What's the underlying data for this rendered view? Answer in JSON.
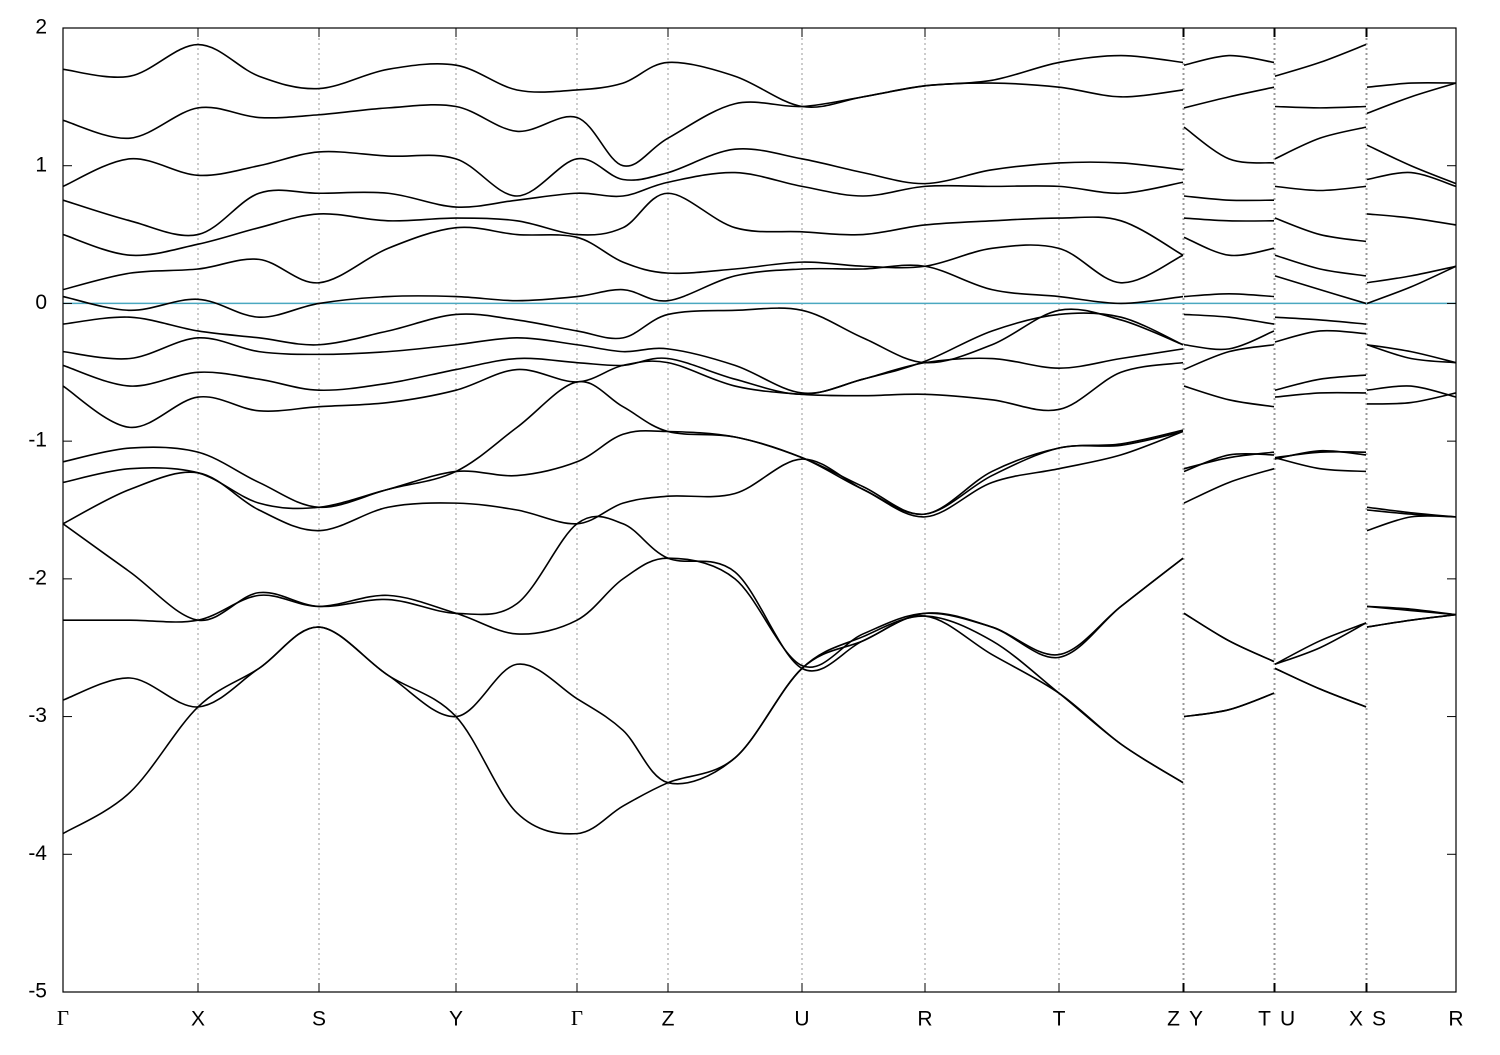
{
  "chart_data": {
    "type": "line",
    "xlim": [
      0,
      1393
    ],
    "ylim": [
      -5,
      2
    ],
    "yticks": [
      -5,
      -4,
      -3,
      -2,
      -1,
      0,
      1,
      2
    ],
    "xticks": [
      {
        "value": 0,
        "label": "Γ"
      },
      {
        "value": 135,
        "label": "X"
      },
      {
        "value": 256,
        "label": "S"
      },
      {
        "value": 393,
        "label": "Y"
      },
      {
        "value": 514,
        "label": "Γ"
      },
      {
        "value": 605,
        "label": "Z"
      },
      {
        "value": 739,
        "label": "U"
      },
      {
        "value": 862,
        "label": "R"
      },
      {
        "value": 996,
        "label": "T"
      },
      {
        "value": 1120,
        "label": "Z"
      },
      {
        "value": 1121,
        "label": "Y"
      },
      {
        "value": 1211,
        "label": "T"
      },
      {
        "value": 1212,
        "label": "U"
      },
      {
        "value": 1303,
        "label": "X"
      },
      {
        "value": 1304,
        "label": "S"
      },
      {
        "value": 1393,
        "label": "R"
      }
    ],
    "grid": true,
    "fermi_level": 0,
    "fermi_color": "#4aa8c0",
    "x": [
      0,
      67,
      135,
      196,
      256,
      325,
      393,
      454,
      514,
      560,
      605,
      672,
      739,
      800,
      862,
      929,
      996,
      1058,
      1120,
      1120.5,
      1121,
      1166,
      1211,
      1211.5,
      1212,
      1257,
      1303,
      1303.5,
      1304,
      1348,
      1393
    ],
    "series": [
      {
        "color": "#000000",
        "values": [
          -3.85,
          -3.55,
          -2.93,
          -2.65,
          -2.35,
          -2.7,
          -3.0,
          -3.7,
          -3.85,
          -3.65,
          -3.48,
          -3.3,
          -2.65,
          -2.45,
          -2.27,
          -2.55,
          -2.83,
          -3.2,
          -3.48,
          null,
          -3.0,
          -2.95,
          -2.83,
          null,
          -2.65,
          -2.8,
          -2.93,
          null,
          -2.35,
          -2.3,
          -2.26
        ]
      },
      {
        "color": "#000000",
        "values": [
          -2.88,
          -2.72,
          -2.93,
          -2.65,
          -2.35,
          -2.7,
          -3.0,
          -2.62,
          -2.87,
          -3.1,
          -3.48,
          -3.3,
          -2.65,
          -2.42,
          -2.27,
          -2.45,
          -2.83,
          -3.2,
          -3.48,
          null,
          -3.0,
          -2.95,
          -2.83,
          null,
          -2.65,
          -2.8,
          -2.93,
          null,
          -2.35,
          -2.3,
          -2.26
        ]
      },
      {
        "color": "#000000",
        "values": [
          -2.3,
          -2.3,
          -2.3,
          -2.12,
          -2.2,
          -2.12,
          -2.25,
          -2.4,
          -2.3,
          -2.0,
          -1.85,
          -2.0,
          -2.63,
          -2.4,
          -2.25,
          -2.35,
          -2.55,
          -2.2,
          -1.85,
          null,
          -2.25,
          -2.45,
          -2.6,
          null,
          -2.62,
          -2.5,
          -2.32,
          null,
          -2.2,
          -2.23,
          -2.26
        ]
      },
      {
        "color": "#000000",
        "values": [
          -1.6,
          -1.95,
          -2.3,
          -2.1,
          -2.2,
          -2.15,
          -2.25,
          -2.18,
          -1.6,
          -1.6,
          -1.85,
          -1.95,
          -2.65,
          -2.45,
          -2.25,
          -2.35,
          -2.57,
          -2.2,
          -1.85,
          null,
          -2.25,
          -2.45,
          -2.6,
          null,
          -2.62,
          -2.45,
          -2.32,
          null,
          -2.2,
          -2.22,
          -2.26
        ]
      },
      {
        "color": "#000000",
        "values": [
          -1.6,
          -1.35,
          -1.23,
          -1.5,
          -1.65,
          -1.48,
          -1.45,
          -1.5,
          -1.6,
          -1.45,
          -1.4,
          -1.38,
          -1.13,
          -1.35,
          -1.55,
          -1.3,
          -1.2,
          -1.1,
          -0.93,
          null,
          -1.45,
          -1.3,
          -1.2,
          null,
          -1.12,
          -1.2,
          -1.22,
          null,
          -1.65,
          -1.55,
          -1.55
        ]
      },
      {
        "color": "#000000",
        "values": [
          -1.3,
          -1.2,
          -1.23,
          -1.45,
          -1.48,
          -1.35,
          -1.22,
          -1.25,
          -1.15,
          -0.95,
          -0.93,
          -0.97,
          -1.12,
          -1.35,
          -1.53,
          -1.25,
          -1.05,
          -1.03,
          -0.93,
          null,
          -1.22,
          -1.1,
          -1.1,
          null,
          -1.13,
          -1.07,
          -1.1,
          null,
          -1.48,
          -1.52,
          -1.55
        ]
      },
      {
        "color": "#000000",
        "values": [
          -1.15,
          -1.05,
          -1.08,
          -1.3,
          -1.48,
          -1.35,
          -1.22,
          -0.9,
          -0.57,
          -0.75,
          -0.93,
          -0.97,
          -1.12,
          -1.33,
          -1.53,
          -1.22,
          -1.05,
          -1.02,
          -0.92,
          null,
          -1.2,
          -1.12,
          -1.08,
          null,
          -1.12,
          -1.08,
          -1.08,
          null,
          -1.5,
          -1.53,
          -1.55
        ]
      },
      {
        "color": "#000000",
        "values": [
          -0.6,
          -0.9,
          -0.68,
          -0.78,
          -0.75,
          -0.72,
          -0.63,
          -0.48,
          -0.57,
          -0.45,
          -0.43,
          -0.6,
          -0.66,
          -0.67,
          -0.66,
          -0.7,
          -0.77,
          -0.5,
          -0.43,
          null,
          -0.6,
          -0.7,
          -0.75,
          null,
          -0.63,
          -0.55,
          -0.52,
          null,
          -0.73,
          -0.72,
          -0.65
        ]
      },
      {
        "color": "#000000",
        "values": [
          -0.45,
          -0.6,
          -0.5,
          -0.55,
          -0.63,
          -0.58,
          -0.48,
          -0.4,
          -0.43,
          -0.45,
          -0.4,
          -0.55,
          -0.66,
          -0.55,
          -0.43,
          -0.4,
          -0.47,
          -0.4,
          -0.33,
          null,
          -0.48,
          -0.35,
          -0.3,
          null,
          -0.68,
          -0.65,
          -0.65,
          null,
          -0.63,
          -0.6,
          -0.68
        ]
      },
      {
        "color": "#000000",
        "values": [
          -0.35,
          -0.4,
          -0.25,
          -0.35,
          -0.37,
          -0.35,
          -0.3,
          -0.25,
          -0.3,
          -0.35,
          -0.33,
          -0.45,
          -0.65,
          -0.55,
          -0.42,
          -0.2,
          -0.08,
          -0.1,
          -0.3,
          null,
          -0.3,
          -0.33,
          -0.2,
          null,
          -0.28,
          -0.2,
          -0.22,
          null,
          -0.3,
          -0.35,
          -0.43
        ]
      },
      {
        "color": "#000000",
        "values": [
          -0.15,
          -0.1,
          -0.2,
          -0.25,
          -0.3,
          -0.2,
          -0.08,
          -0.12,
          -0.2,
          -0.25,
          -0.08,
          -0.05,
          -0.05,
          -0.25,
          -0.43,
          -0.3,
          -0.05,
          -0.12,
          -0.3,
          null,
          -0.08,
          -0.1,
          -0.15,
          null,
          -0.1,
          -0.12,
          -0.15,
          null,
          -0.3,
          -0.4,
          -0.43
        ]
      },
      {
        "color": "#000000",
        "values": [
          0.05,
          -0.05,
          0.03,
          -0.1,
          0.0,
          0.05,
          0.05,
          0.02,
          0.05,
          0.1,
          0.02,
          0.2,
          0.25,
          0.25,
          0.27,
          0.1,
          0.05,
          0.0,
          0.05,
          null,
          0.05,
          0.07,
          0.05,
          null,
          0.2,
          0.1,
          0.0,
          null,
          0.0,
          0.12,
          0.27
        ]
      },
      {
        "color": "#000000",
        "values": [
          0.1,
          0.22,
          0.25,
          0.32,
          0.15,
          0.4,
          0.55,
          0.5,
          0.48,
          0.3,
          0.22,
          0.25,
          0.3,
          0.27,
          0.27,
          0.4,
          0.4,
          0.15,
          0.35,
          null,
          0.48,
          0.35,
          0.4,
          null,
          0.35,
          0.25,
          0.2,
          null,
          0.15,
          0.2,
          0.27
        ]
      },
      {
        "color": "#000000",
        "values": [
          0.5,
          0.35,
          0.43,
          0.55,
          0.65,
          0.6,
          0.62,
          0.6,
          0.5,
          0.55,
          0.8,
          0.55,
          0.52,
          0.5,
          0.57,
          0.6,
          0.62,
          0.6,
          0.35,
          null,
          0.62,
          0.6,
          0.6,
          null,
          0.62,
          0.5,
          0.45,
          null,
          0.65,
          0.62,
          0.57
        ]
      },
      {
        "color": "#000000",
        "values": [
          0.75,
          0.6,
          0.5,
          0.8,
          0.8,
          0.8,
          0.7,
          0.75,
          0.8,
          0.78,
          0.88,
          0.95,
          0.85,
          0.78,
          0.85,
          0.85,
          0.85,
          0.8,
          0.88,
          null,
          0.78,
          0.75,
          0.75,
          null,
          0.85,
          0.82,
          0.85,
          null,
          0.9,
          0.95,
          0.85
        ]
      },
      {
        "color": "#000000",
        "values": [
          0.85,
          1.05,
          0.93,
          1.0,
          1.1,
          1.07,
          1.05,
          0.78,
          1.05,
          0.9,
          0.95,
          1.12,
          1.05,
          0.95,
          0.87,
          0.97,
          1.02,
          1.02,
          0.97,
          null,
          1.28,
          1.05,
          1.02,
          null,
          1.05,
          1.2,
          1.28,
          null,
          1.15,
          1.0,
          0.87
        ]
      },
      {
        "color": "#000000",
        "values": [
          1.33,
          1.2,
          1.42,
          1.35,
          1.37,
          1.42,
          1.43,
          1.25,
          1.35,
          1.0,
          1.2,
          1.45,
          1.43,
          1.5,
          1.58,
          1.6,
          1.57,
          1.5,
          1.55,
          null,
          1.42,
          1.5,
          1.57,
          null,
          1.43,
          1.42,
          1.43,
          null,
          1.38,
          1.5,
          1.6
        ]
      },
      {
        "color": "#000000",
        "values": [
          1.7,
          1.65,
          1.88,
          1.65,
          1.56,
          1.7,
          1.73,
          1.55,
          1.55,
          1.6,
          1.75,
          1.65,
          1.43,
          1.5,
          1.58,
          1.62,
          1.75,
          1.8,
          1.75,
          null,
          1.73,
          1.8,
          1.75,
          null,
          1.65,
          1.75,
          1.88,
          null,
          1.57,
          1.6,
          1.6
        ]
      }
    ]
  }
}
